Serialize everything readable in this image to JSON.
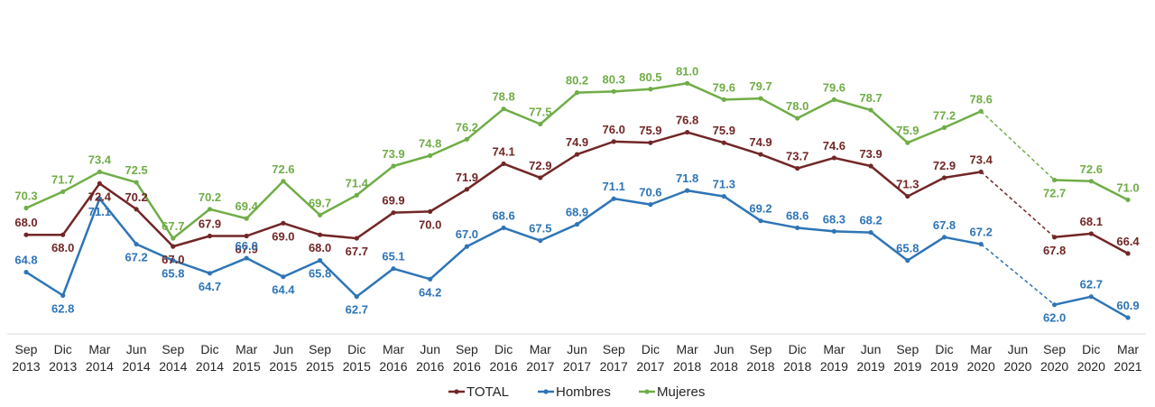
{
  "chart_data": {
    "type": "line",
    "categories": [
      [
        "Sep",
        "2013"
      ],
      [
        "Dic",
        "2013"
      ],
      [
        "Mar",
        "2014"
      ],
      [
        "Jun",
        "2014"
      ],
      [
        "Sep",
        "2014"
      ],
      [
        "Dic",
        "2014"
      ],
      [
        "Mar",
        "2015"
      ],
      [
        "Jun",
        "2015"
      ],
      [
        "Sep",
        "2015"
      ],
      [
        "Dic",
        "2015"
      ],
      [
        "Mar",
        "2016"
      ],
      [
        "Jun",
        "2016"
      ],
      [
        "Sep",
        "2016"
      ],
      [
        "Dic",
        "2016"
      ],
      [
        "Mar",
        "2017"
      ],
      [
        "Jun",
        "2017"
      ],
      [
        "Sep",
        "2017"
      ],
      [
        "Dic",
        "2017"
      ],
      [
        "Mar",
        "2018"
      ],
      [
        "Jun",
        "2018"
      ],
      [
        "Sep",
        "2018"
      ],
      [
        "Dic",
        "2018"
      ],
      [
        "Mar",
        "2019"
      ],
      [
        "Jun",
        "2019"
      ],
      [
        "Sep",
        "2019"
      ],
      [
        "Dic",
        "2019"
      ],
      [
        "Mar",
        "2020"
      ],
      [
        "Jun",
        "2020"
      ],
      [
        "Sep",
        "2020"
      ],
      [
        "Dic",
        "2020"
      ],
      [
        "Mar",
        "2021"
      ]
    ],
    "series": [
      {
        "name": "TOTAL",
        "color": "#722626",
        "values": [
          68.0,
          68.0,
          72.4,
          70.2,
          67.0,
          67.9,
          67.9,
          69.0,
          68.0,
          67.7,
          69.9,
          70.0,
          71.9,
          74.1,
          72.9,
          74.9,
          76.0,
          75.9,
          76.8,
          75.9,
          74.9,
          73.7,
          74.6,
          73.9,
          71.3,
          72.9,
          73.4,
          null,
          67.8,
          68.1,
          66.4
        ],
        "label_pos": [
          "above",
          "below",
          "below",
          "above",
          "below",
          "above",
          "below",
          "below",
          "below",
          "below",
          "above",
          "below",
          "above",
          "above",
          "above",
          "above",
          "above",
          "above",
          "above",
          "above",
          "above",
          "above",
          "above",
          "above",
          "above",
          "above",
          "above",
          null,
          "below",
          "above",
          "above"
        ]
      },
      {
        "name": "Hombres",
        "color": "#2e75b6",
        "values": [
          64.8,
          62.8,
          71.1,
          67.2,
          65.8,
          64.7,
          66.0,
          64.4,
          65.8,
          62.7,
          65.1,
          64.2,
          67.0,
          68.6,
          67.5,
          68.9,
          71.1,
          70.6,
          71.8,
          71.3,
          69.2,
          68.6,
          68.3,
          68.2,
          65.8,
          67.8,
          67.2,
          null,
          62.0,
          62.7,
          60.9
        ],
        "label_pos": [
          "above",
          "below",
          "below",
          "below",
          "below",
          "below",
          "above",
          "below",
          "below",
          "below",
          "above",
          "below",
          "above",
          "above",
          "above",
          "above",
          "above",
          "above",
          "above",
          "above",
          "above",
          "above",
          "above",
          "above",
          "above",
          "above",
          "above",
          null,
          "below",
          "above",
          "above"
        ]
      },
      {
        "name": "Mujeres",
        "color": "#70ad47",
        "values": [
          70.3,
          71.7,
          73.4,
          72.5,
          67.7,
          70.2,
          69.4,
          72.6,
          69.7,
          71.4,
          73.9,
          74.8,
          76.2,
          78.8,
          77.5,
          80.2,
          80.3,
          80.5,
          81.0,
          79.6,
          79.7,
          78.0,
          79.6,
          78.7,
          75.9,
          77.2,
          78.6,
          null,
          72.7,
          72.6,
          71.0
        ],
        "label_pos": [
          "above",
          "above",
          "above",
          "above",
          "above",
          "above",
          "above",
          "above",
          "above",
          "above",
          "above",
          "above",
          "above",
          "above",
          "above",
          "above",
          "above",
          "above",
          "above",
          "above",
          "above",
          "above",
          "above",
          "above",
          "above",
          "above",
          "above",
          null,
          "below",
          "above",
          "above"
        ]
      }
    ],
    "gap_dashed": true,
    "ylim": [
      59.5,
      83.5
    ],
    "grid": false,
    "legend": "bottom-center",
    "title": "",
    "xlabel": "",
    "ylabel": ""
  }
}
